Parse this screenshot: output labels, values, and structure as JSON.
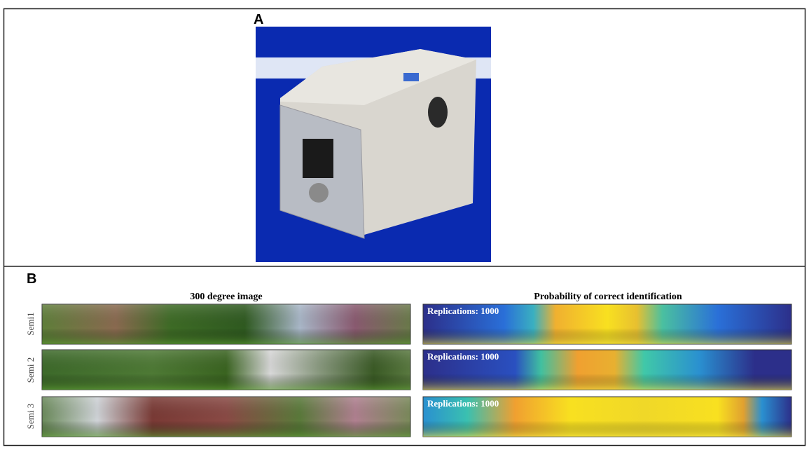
{
  "panels": [
    {
      "label": "A"
    },
    {
      "label": "B",
      "left_title": "300 degree image",
      "right_title": "Probability of correct identification",
      "rows": [
        {
          "label": "Semi1",
          "annotation": "Replications: 1000"
        },
        {
          "label": "Semi 2",
          "annotation": "Replications: 1000"
        },
        {
          "label": "Semi 3",
          "annotation": "Replications: 1000"
        }
      ]
    }
  ]
}
